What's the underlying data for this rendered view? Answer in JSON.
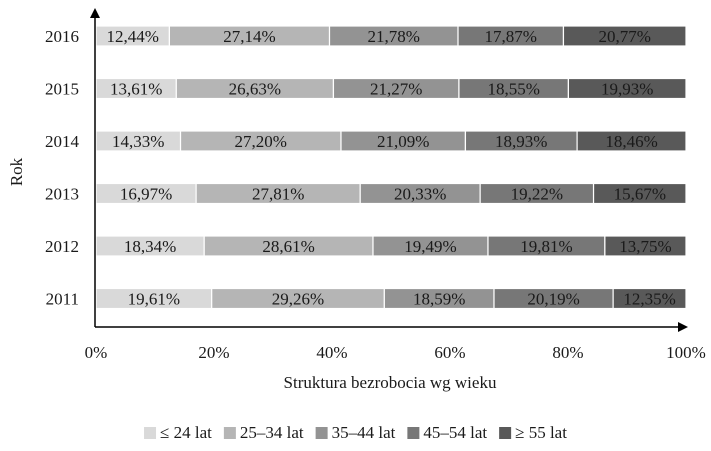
{
  "chart_data": {
    "type": "bar",
    "orientation": "horizontal",
    "stacked": "percent",
    "title": "",
    "xlabel": "Struktura bezrobocia wg wieku",
    "ylabel": "Rok",
    "xlim": [
      0,
      100
    ],
    "xticks": [
      "0%",
      "20%",
      "40%",
      "60%",
      "80%",
      "100%"
    ],
    "grid": false,
    "legend_position": "bottom",
    "categories": [
      "2016",
      "2015",
      "2014",
      "2013",
      "2012",
      "2011"
    ],
    "series": [
      {
        "name": "≤ 24 lat",
        "color": "#d9d9d9",
        "values": [
          12.44,
          13.61,
          14.33,
          16.97,
          18.34,
          19.61
        ],
        "labels": [
          "12,44%",
          "13,61%",
          "14,33%",
          "16,97%",
          "18,34%",
          "19,61%"
        ]
      },
      {
        "name": "25–34 lat",
        "color": "#b5b5b5",
        "values": [
          27.14,
          26.63,
          27.2,
          27.81,
          28.61,
          29.26
        ],
        "labels": [
          "27,14%",
          "26,63%",
          "27,20%",
          "27,81%",
          "28,61%",
          "29,26%"
        ]
      },
      {
        "name": "35–44 lat",
        "color": "#939393",
        "values": [
          21.78,
          21.27,
          21.09,
          20.33,
          19.49,
          18.59
        ],
        "labels": [
          "21,78%",
          "21,27%",
          "21,09%",
          "20,33%",
          "19,49%",
          "18,59%"
        ]
      },
      {
        "name": "45–54 lat",
        "color": "#777777",
        "values": [
          17.87,
          18.55,
          18.93,
          19.22,
          19.81,
          20.19
        ],
        "labels": [
          "17,87%",
          "18,55%",
          "18,93%",
          "19,22%",
          "19,81%",
          "20,19%"
        ]
      },
      {
        "name": "≥ 55 lat",
        "color": "#595959",
        "values": [
          20.77,
          19.93,
          18.46,
          15.67,
          13.75,
          12.35
        ],
        "labels": [
          "20,77%",
          "19,93%",
          "18,46%",
          "15,67%",
          "13,75%",
          "12,35%"
        ]
      }
    ]
  }
}
